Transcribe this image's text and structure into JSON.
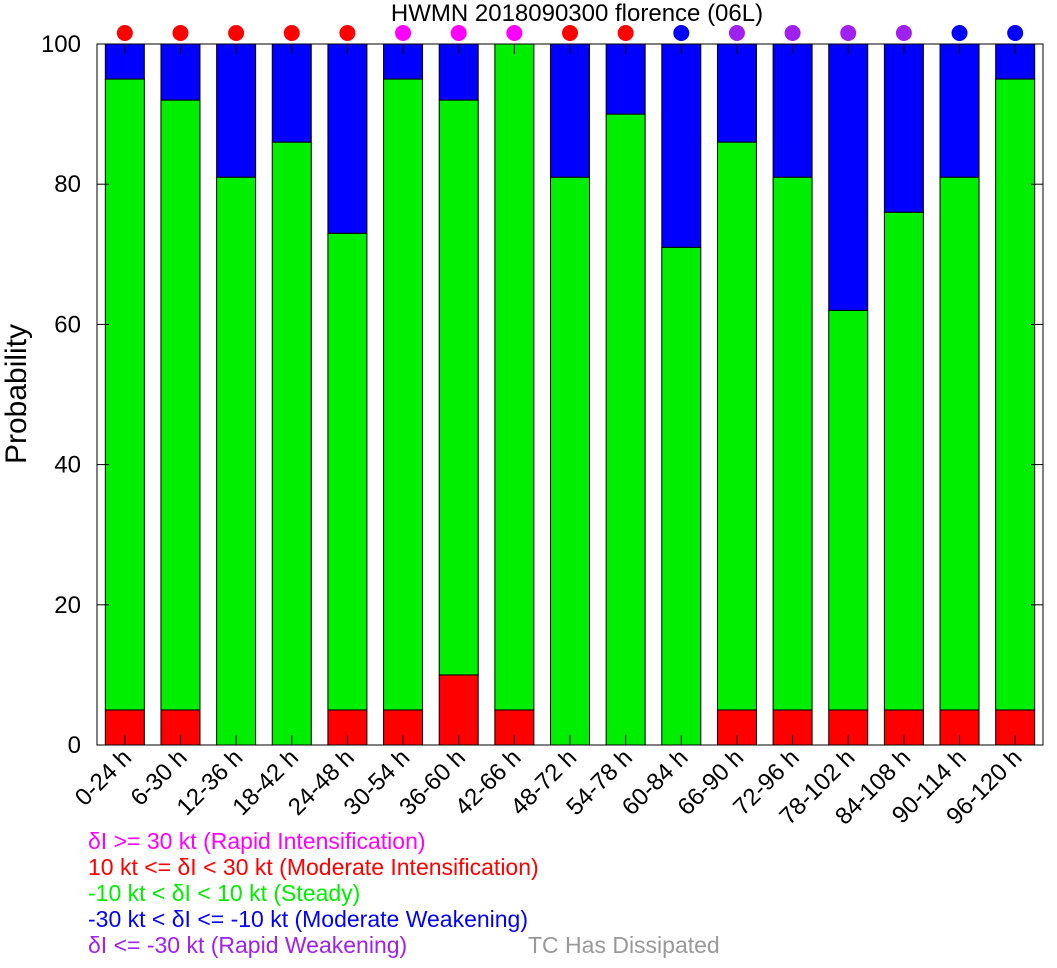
{
  "chart_data": {
    "type": "bar",
    "stacked": true,
    "title": "HWMN 2018090300 florence (06L)",
    "xlabel": "",
    "ylabel": "Probability",
    "ylim": [
      0,
      100
    ],
    "yticks": [
      0,
      20,
      40,
      60,
      80,
      100
    ],
    "grid": false,
    "categories": [
      "0-24 h",
      "6-30 h",
      "12-36 h",
      "18-42 h",
      "24-48 h",
      "30-54 h",
      "36-60 h",
      "42-66 h",
      "48-72 h",
      "54-78 h",
      "60-84 h",
      "66-90 h",
      "72-96 h",
      "78-102 h",
      "84-108 h",
      "90-114 h",
      "96-120 h"
    ],
    "series": [
      {
        "name": "10 kt <= δI < 30 kt (Moderate Intensification)",
        "color": "#ff0000",
        "values": [
          5,
          5,
          0,
          0,
          5,
          5,
          10,
          5,
          0,
          0,
          0,
          5,
          5,
          5,
          5,
          5,
          5
        ]
      },
      {
        "name": "-10 kt < δI < 10 kt (Steady)",
        "color": "#00ee00",
        "values": [
          90,
          87,
          81,
          86,
          68,
          90,
          82,
          95,
          81,
          90,
          71,
          81,
          76,
          57,
          71,
          76,
          90
        ]
      },
      {
        "name": "-30 kt < δI <= -10 kt (Moderate Weakening)",
        "color": "#0000ff",
        "values": [
          5,
          8,
          19,
          14,
          27,
          5,
          8,
          0,
          19,
          10,
          29,
          14,
          19,
          38,
          24,
          19,
          5
        ]
      }
    ],
    "top_markers": [
      "moderate_intensification",
      "moderate_intensification",
      "moderate_intensification",
      "moderate_intensification",
      "moderate_intensification",
      "rapid_intensification",
      "rapid_intensification",
      "rapid_intensification",
      "moderate_intensification",
      "moderate_intensification",
      "moderate_weakening",
      "rapid_weakening",
      "rapid_weakening",
      "rapid_weakening",
      "rapid_weakening",
      "moderate_weakening",
      "moderate_weakening"
    ],
    "legend": [
      {
        "key": "rapid_intensification",
        "label": "δI >= 30 kt (Rapid Intensification)",
        "color": "#ff00ff"
      },
      {
        "key": "moderate_intensification",
        "label": "10 kt <= δI < 30 kt (Moderate Intensification)",
        "color": "#ff0000"
      },
      {
        "key": "steady",
        "label": "-10 kt < δI < 10 kt (Steady)",
        "color": "#00ee00"
      },
      {
        "key": "moderate_weakening",
        "label": "-30 kt < δI <= -10 kt (Moderate Weakening)",
        "color": "#0000ff"
      },
      {
        "key": "rapid_weakening",
        "label": "δI <= -30 kt (Rapid Weakening)",
        "color": "#a020f0"
      }
    ],
    "dissipated_label": "TC Has Dissipated",
    "dissipated_color": "#999999",
    "legend_placement": "bottom-left"
  }
}
